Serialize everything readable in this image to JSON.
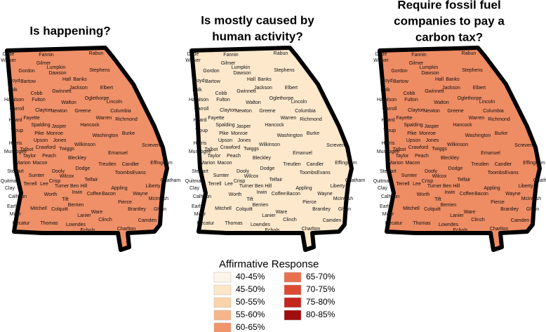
{
  "maps": [
    {
      "title_lines": [
        "Is happening?"
      ],
      "fill": "#ef9068"
    },
    {
      "title_lines": [
        "Is mostly caused by",
        "human activity?"
      ],
      "fill": "#fde8cc"
    },
    {
      "title_lines": [
        "Require fossil fuel",
        "companies to pay a",
        "carbon tax?"
      ],
      "fill": "#ee8c64"
    }
  ],
  "counties": [
    "Dade",
    "Walker",
    "Fannin",
    "Gilmer",
    "Rabun",
    "Stephens",
    "Gordon",
    "Lumpkin",
    "Dawson",
    "Hall",
    "Banks",
    "Floyd",
    "Bartow",
    "Polk",
    "Jackson",
    "Elbert",
    "Cobb",
    "Gwinnett",
    "Haralson",
    "Fulton",
    "Oglethorpe",
    "Walton",
    "Carroll",
    "Clayton",
    "Newton",
    "Lincoln",
    "Fayette",
    "Greene",
    "Columbia",
    "Heard",
    "Spalding",
    "Jasper",
    "Warren",
    "Richmond",
    "Hancock",
    "Troup",
    "Pike",
    "Monroe",
    "Washington",
    "Burke",
    "Upson",
    "Jones",
    "Harris",
    "Talbot",
    "Crawford",
    "Wilkinson",
    "Muscogee",
    "Twiggs",
    "Screven",
    "Taylor",
    "Peach",
    "Emanuel",
    "Marion",
    "Macon",
    "Bleckley",
    "Treutlen",
    "Candler",
    "Effingham",
    "Dooly",
    "Dodge",
    "Toombs",
    "Evans",
    "Stewart",
    "Sumter",
    "Wilcox",
    "Chatham",
    "Quitman",
    "Crisp",
    "Telfair",
    "Liberty",
    "Clay",
    "Terrell",
    "Lee",
    "Turner",
    "Ben Hill",
    "Irwin",
    "Appling",
    "Wayne",
    "Calhoun",
    "Worth",
    "Coffee",
    "Bacon",
    "McIntosh",
    "Tift",
    "Pierce",
    "Early",
    "Berrien",
    "Brantley",
    "Glynn",
    "Miller",
    "Mitchell",
    "Colquitt",
    "Ware",
    "Lanier",
    "Clinch",
    "Camden",
    "Decatur",
    "Thomas",
    "Lowndes",
    "Echols",
    "Charlton"
  ],
  "legend": {
    "title": "Affirmative Response",
    "items": [
      {
        "label": "40-45%",
        "color": "#fdf5e8"
      },
      {
        "label": "45-50%",
        "color": "#fde6c8"
      },
      {
        "label": "50-55%",
        "color": "#fbd3a8"
      },
      {
        "label": "55-60%",
        "color": "#f6b68a"
      },
      {
        "label": "60-65%",
        "color": "#f0946b"
      },
      {
        "label": "65-70%",
        "color": "#e9704e"
      },
      {
        "label": "70-75%",
        "color": "#dd4a34"
      },
      {
        "label": "75-80%",
        "color": "#c4241c"
      },
      {
        "label": "80-85%",
        "color": "#a00d0d"
      }
    ]
  }
}
